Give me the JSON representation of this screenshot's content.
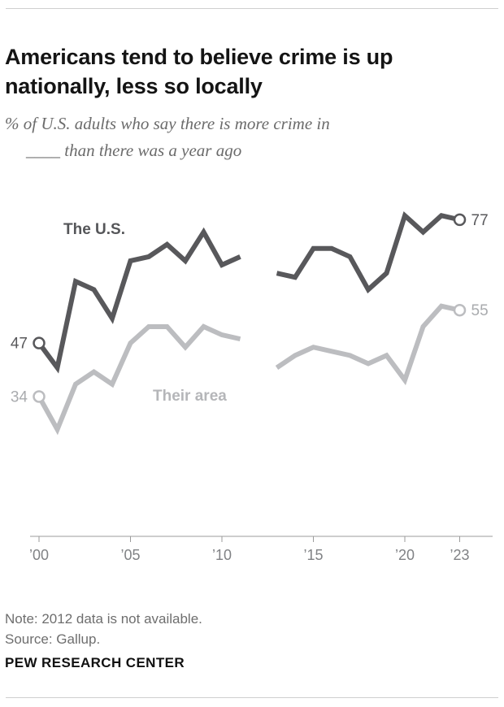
{
  "header": {
    "title": "Americans tend to believe crime is up\nnationally, less so locally",
    "subtitle_lines": [
      "% of U.S. adults who say there is more crime in",
      "____ than there was a year ago"
    ]
  },
  "chart_data": {
    "type": "line",
    "title": "",
    "x": [
      2000,
      2001,
      2002,
      2003,
      2004,
      2005,
      2006,
      2007,
      2008,
      2009,
      2010,
      2011,
      2013,
      2014,
      2015,
      2016,
      2017,
      2018,
      2019,
      2020,
      2021,
      2022,
      2023
    ],
    "gap_years": [
      2012
    ],
    "x_ticks": [
      {
        "year": 2000,
        "label": "’00"
      },
      {
        "year": 2005,
        "label": "’05"
      },
      {
        "year": 2010,
        "label": "’10"
      },
      {
        "year": 2015,
        "label": "’15"
      },
      {
        "year": 2020,
        "label": "’20"
      },
      {
        "year": 2023,
        "label": "’23"
      }
    ],
    "ylim": [
      0,
      80
    ],
    "grid": false,
    "legend": "inline-labels",
    "series": [
      {
        "name": "The U.S.",
        "color": "#58585b",
        "label_color": "#58585b",
        "start_label": "47",
        "end_label": "77",
        "values": [
          47,
          41,
          62,
          60,
          53,
          67,
          68,
          71,
          67,
          74,
          66,
          68,
          64,
          63,
          70,
          70,
          68,
          60,
          64,
          78,
          74,
          78,
          77
        ]
      },
      {
        "name": "Their area",
        "color": "#bcbdc0",
        "label_color": "#a9abae",
        "start_label": "34",
        "end_label": "55",
        "values": [
          34,
          26,
          37,
          40,
          37,
          47,
          51,
          51,
          46,
          51,
          49,
          48,
          41,
          44,
          46,
          45,
          44,
          42,
          44,
          38,
          51,
          56,
          55
        ]
      }
    ],
    "axis_color": "#9b9b9b",
    "tick_label_color": "#808285"
  },
  "footer": {
    "note": "Note: 2012 data is not available.",
    "source": "Source: Gallup.",
    "brand": "PEW RESEARCH CENTER"
  }
}
